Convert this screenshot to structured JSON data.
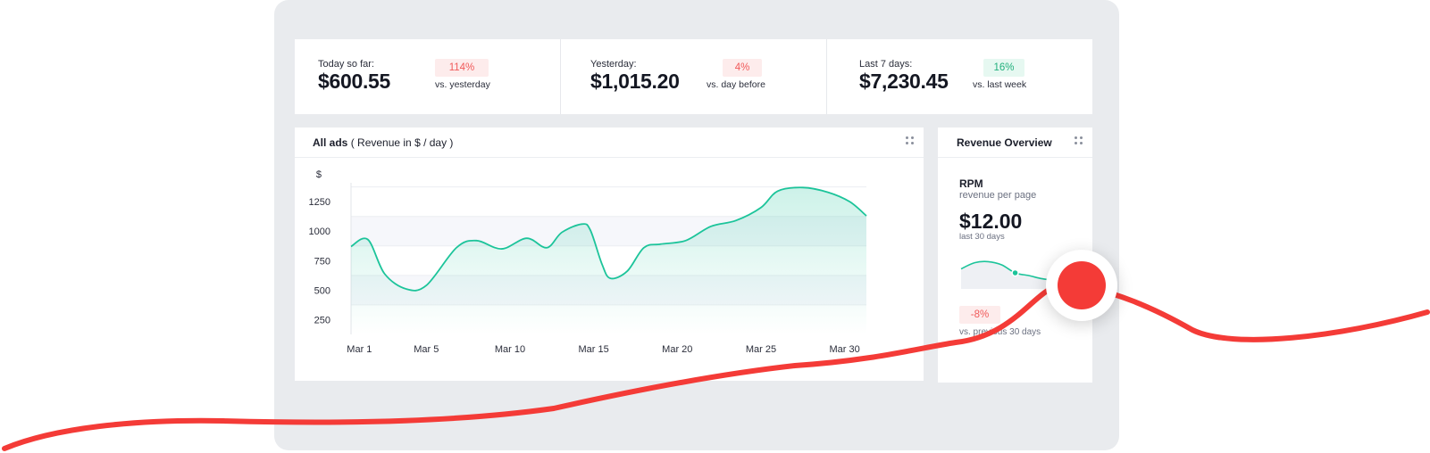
{
  "stats": [
    {
      "label": "Today so far:",
      "value": "$600.55",
      "change": "114%",
      "compare": "vs. yesterday",
      "trend": "down"
    },
    {
      "label": "Yesterday:",
      "value": "$1,015.20",
      "change": "4%",
      "compare": "vs. day before",
      "trend": "down"
    },
    {
      "label": "Last 7 days:",
      "value": "$7,230.45",
      "change": "16%",
      "compare": "vs. last week",
      "trend": "up"
    }
  ],
  "chart_card": {
    "title_bold": "All ads",
    "title_rest": " ( Revenue in $ / day )"
  },
  "revenue_card": {
    "title": "Revenue Overview",
    "metric": "RPM",
    "metric_desc": "revenue per page",
    "value": "$12.00",
    "period": "last 30 days",
    "change": "-8%",
    "compare": "vs. previous 30 days"
  },
  "colors": {
    "accent": "#1cc49a",
    "negative": "#f05a5a",
    "positive": "#22b07d",
    "highlight": "#f43b37"
  },
  "chart_data": {
    "type": "area",
    "title": "All ads ( Revenue in $ / day )",
    "ylabel": "$",
    "ylim": [
      125,
      1410
    ],
    "yticks": [
      250,
      500,
      750,
      1000,
      1250
    ],
    "xticks": [
      {
        "x": 1,
        "label": "Mar 1"
      },
      {
        "x": 5,
        "label": "Mar 5"
      },
      {
        "x": 10,
        "label": "Mar 10"
      },
      {
        "x": 15,
        "label": "Mar 15"
      },
      {
        "x": 20,
        "label": "Mar 20"
      },
      {
        "x": 25,
        "label": "Mar 25"
      },
      {
        "x": 30,
        "label": "Mar 30"
      }
    ],
    "xlim": [
      0.5,
      31.3
    ],
    "series": [
      {
        "x": [
          0.5,
          1.5,
          2.5,
          3.8,
          5.0,
          6.8,
          8.0,
          9.5,
          11.0,
          12.2,
          13.1,
          14.3,
          14.8,
          15.5,
          16.0,
          17.0,
          18.0,
          19.0,
          20.5,
          22.0,
          23.5,
          25.0,
          26.0,
          27.5,
          29.0,
          30.3,
          31.3
        ],
        "y": [
          870,
          930,
          640,
          510,
          540,
          860,
          920,
          850,
          940,
          860,
          990,
          1060,
          1010,
          720,
          600,
          660,
          860,
          890,
          920,
          1040,
          1090,
          1200,
          1340,
          1370,
          1330,
          1250,
          1130
        ]
      }
    ],
    "grid": "banded",
    "legend": "none"
  },
  "sparkline_data": {
    "type": "line",
    "values": [
      0.55,
      0.78,
      0.82,
      0.7,
      0.4,
      0.3,
      0.18,
      0.12
    ],
    "marker_index": 4
  }
}
